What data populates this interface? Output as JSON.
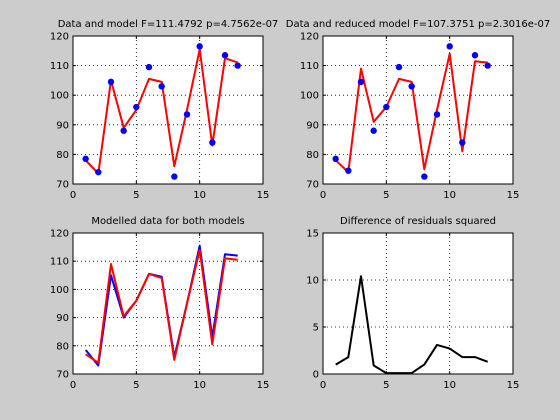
{
  "figure": {
    "background": "#cccccc"
  },
  "chart_data": [
    {
      "type": "line",
      "title": "Data and model F=111.4792 p=4.7562e-07",
      "xlim": [
        0,
        15
      ],
      "ylim": [
        70,
        120
      ],
      "xticks": [
        0,
        5,
        10,
        15
      ],
      "yticks": [
        70,
        80,
        90,
        100,
        110,
        120
      ],
      "grid": true,
      "x": [
        1,
        2,
        3,
        4,
        5,
        6,
        7,
        8,
        9,
        10,
        11,
        12,
        13
      ],
      "series": [
        {
          "style": "line",
          "color": "#ff0000",
          "values": [
            78,
            73.5,
            105,
            89,
            95,
            105.5,
            104.5,
            76,
            95,
            115.5,
            83,
            112.5,
            111
          ]
        },
        {
          "style": "markers",
          "color": "#0000ff",
          "values": [
            78.5,
            74,
            104.5,
            88,
            96,
            109.5,
            103,
            72.5,
            93.5,
            116.5,
            84,
            113.5,
            110
          ]
        }
      ]
    },
    {
      "type": "line",
      "title": "Data and reduced model F=107.3751 p=2.3016e-07",
      "xlim": [
        0,
        15
      ],
      "ylim": [
        70,
        120
      ],
      "xticks": [
        0,
        5,
        10,
        15
      ],
      "yticks": [
        70,
        80,
        90,
        100,
        110,
        120
      ],
      "grid": true,
      "x": [
        1,
        2,
        3,
        4,
        5,
        6,
        7,
        8,
        9,
        10,
        11,
        12,
        13
      ],
      "series": [
        {
          "style": "line",
          "color": "#ff0000",
          "values": [
            78,
            74,
            109,
            91,
            96,
            105.5,
            104.5,
            75,
            95,
            114,
            81,
            111.5,
            111
          ]
        },
        {
          "style": "markers",
          "color": "#0000ff",
          "values": [
            78.5,
            74.5,
            104.5,
            88,
            96,
            109.5,
            103,
            72.5,
            93.5,
            116.5,
            84,
            113.5,
            110
          ]
        }
      ]
    },
    {
      "type": "line",
      "title": "Modelled data for both models",
      "xlim": [
        0,
        15
      ],
      "ylim": [
        70,
        120
      ],
      "xticks": [
        0,
        5,
        10,
        15
      ],
      "yticks": [
        70,
        80,
        90,
        100,
        110,
        120
      ],
      "grid": true,
      "x": [
        1,
        2,
        3,
        4,
        5,
        6,
        7,
        8,
        9,
        10,
        11,
        12,
        13
      ],
      "series": [
        {
          "style": "line",
          "color": "#0000ff",
          "values": [
            78.5,
            73,
            105,
            90,
            96,
            105.5,
            104.5,
            76,
            95,
            115.5,
            83,
            112.5,
            112
          ]
        },
        {
          "style": "line",
          "color": "#ff0000",
          "values": [
            77,
            74,
            109,
            90.5,
            96,
            105.5,
            104,
            75,
            95,
            114,
            80.5,
            111,
            110.5
          ]
        }
      ]
    },
    {
      "type": "line",
      "title": "Difference of residuals squared",
      "xlim": [
        0,
        15
      ],
      "ylim": [
        0,
        15
      ],
      "xticks": [
        0,
        5,
        10,
        15
      ],
      "yticks": [
        0,
        5,
        10,
        15
      ],
      "grid": true,
      "x": [
        1,
        2,
        3,
        4,
        5,
        6,
        7,
        8,
        9,
        10,
        11,
        12,
        13
      ],
      "series": [
        {
          "style": "line",
          "color": "#000000",
          "values": [
            1,
            1.8,
            10.4,
            0.9,
            0.1,
            0.1,
            0.1,
            1,
            3.1,
            2.7,
            1.8,
            1.8,
            1.3
          ]
        }
      ]
    }
  ]
}
